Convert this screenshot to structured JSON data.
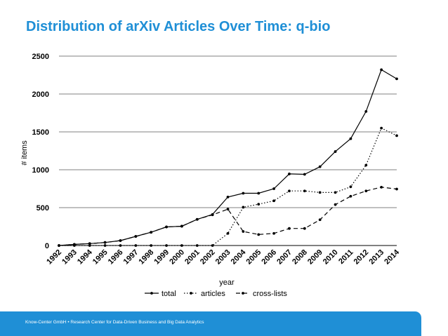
{
  "slide": {
    "title": "Distribution of arXiv Articles Over Time: q-bio",
    "footer": "Know-Center GmbH • Research Center for Data-Driven Business and Big Data Analytics"
  },
  "colors": {
    "title": "#1f8fd6",
    "footer_bar": "#1f8fd6",
    "series": "#000000",
    "grid": "#808080"
  },
  "chart_data": {
    "type": "line",
    "title": "Distribution of arXiv Articles Over Time: q-bio",
    "xlabel": "year",
    "ylabel": "# items",
    "ylim": [
      0,
      2500
    ],
    "yticks": [
      0,
      500,
      1000,
      1500,
      2000,
      2500
    ],
    "grid": true,
    "legend_position": "bottom-center",
    "categories": [
      "1992",
      "1993",
      "1994",
      "1995",
      "1996",
      "1997",
      "1998",
      "1999",
      "2000",
      "2001",
      "2002",
      "2003",
      "2004",
      "2005",
      "2006",
      "2007",
      "2008",
      "2009",
      "2010",
      "2011",
      "2012",
      "2013",
      "2014"
    ],
    "series": [
      {
        "name": "total",
        "style": "solid",
        "values": [
          0,
          15,
          25,
          40,
          65,
          120,
          175,
          245,
          255,
          345,
          410,
          640,
          690,
          690,
          750,
          945,
          940,
          1040,
          1240,
          1410,
          1770,
          2320,
          2200
        ]
      },
      {
        "name": "articles",
        "style": "dotted",
        "values": [
          0,
          0,
          0,
          0,
          0,
          0,
          0,
          0,
          0,
          0,
          0,
          160,
          505,
          545,
          590,
          720,
          720,
          700,
          700,
          775,
          1060,
          1550,
          1450
        ]
      },
      {
        "name": "cross-lists",
        "style": "dashed",
        "values": [
          0,
          15,
          25,
          40,
          65,
          120,
          175,
          245,
          255,
          345,
          405,
          480,
          185,
          145,
          160,
          225,
          225,
          340,
          540,
          650,
          720,
          770,
          745
        ]
      }
    ]
  }
}
